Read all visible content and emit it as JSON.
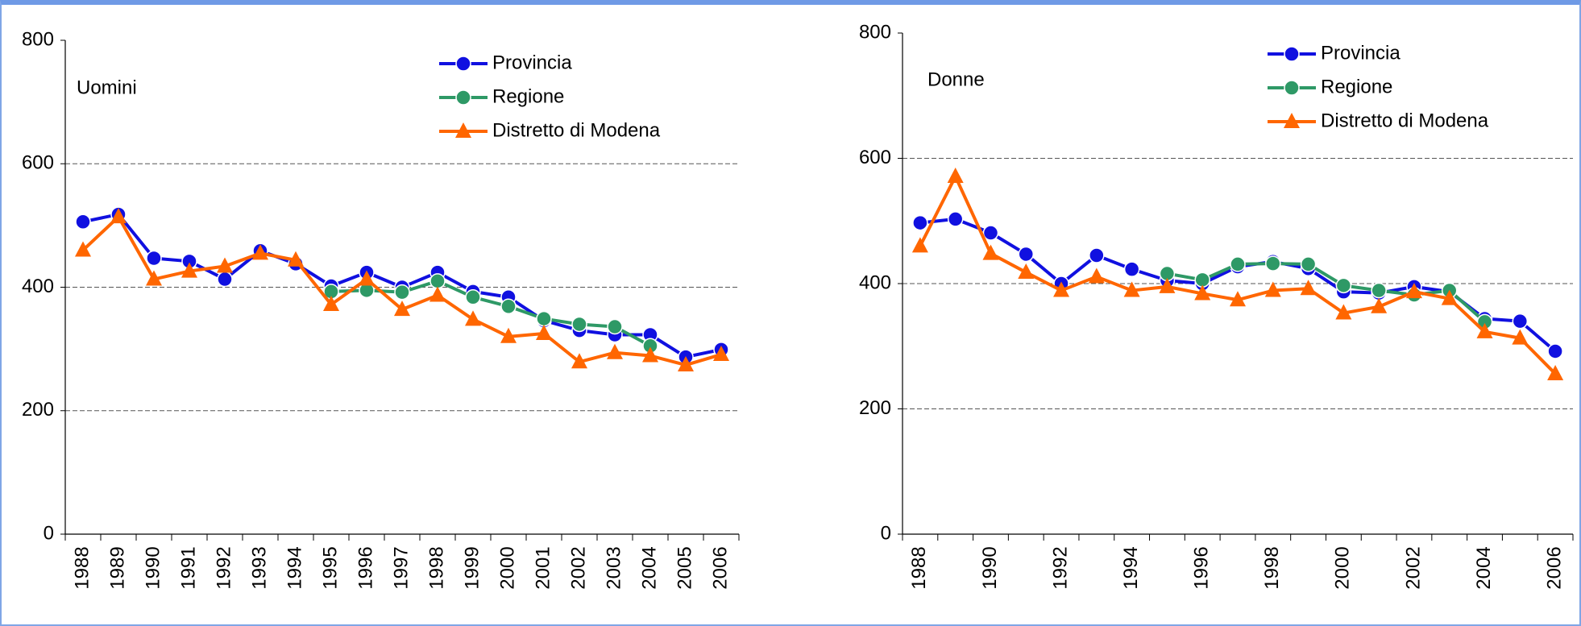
{
  "chart_data": [
    {
      "type": "line",
      "annotation": "Uomini",
      "categories": [
        "1988",
        "1989",
        "1990",
        "1991",
        "1992",
        "1993",
        "1994",
        "1995",
        "1996",
        "1997",
        "1998",
        "1999",
        "2000",
        "2001",
        "2002",
        "2003",
        "2004",
        "2005",
        "2006"
      ],
      "series": [
        {
          "name": "Provincia",
          "color": "#1010e0",
          "marker": "circle",
          "values": [
            506,
            518,
            447,
            442,
            413,
            459,
            438,
            402,
            424,
            400,
            424,
            393,
            384,
            346,
            330,
            323,
            323,
            287,
            299
          ]
        },
        {
          "name": "Regione",
          "color": "#2e9966",
          "marker": "circle",
          "values": [
            null,
            null,
            null,
            null,
            null,
            null,
            null,
            393,
            395,
            392,
            410,
            384,
            369,
            349,
            340,
            336,
            305,
            null,
            null
          ]
        },
        {
          "name": "Distretto di Modena",
          "color": "#ff6600",
          "marker": "triangle",
          "values": [
            460,
            514,
            413,
            426,
            434,
            455,
            444,
            372,
            413,
            364,
            387,
            348,
            320,
            325,
            279,
            294,
            289,
            274,
            291
          ]
        }
      ],
      "ylim": [
        0,
        800
      ],
      "yticks": [
        0,
        200,
        400,
        600,
        800
      ],
      "grid": true,
      "legend": "top-right"
    },
    {
      "type": "line",
      "annotation": "Donne",
      "categories": [
        "1988",
        null,
        "1990",
        null,
        "1992",
        null,
        "1994",
        null,
        "1996",
        null,
        "1998",
        null,
        "2000",
        null,
        "2002",
        null,
        "2004",
        null,
        "2006"
      ],
      "series": [
        {
          "name": "Provincia",
          "color": "#1010e0",
          "marker": "circle",
          "values": [
            497,
            503,
            481,
            447,
            400,
            445,
            423,
            405,
            400,
            427,
            435,
            424,
            387,
            385,
            395,
            387,
            344,
            340,
            292
          ]
        },
        {
          "name": "Regione",
          "color": "#2e9966",
          "marker": "circle",
          "values": [
            null,
            null,
            null,
            null,
            null,
            null,
            null,
            416,
            406,
            431,
            432,
            431,
            397,
            389,
            382,
            389,
            339,
            null,
            null
          ]
        },
        {
          "name": "Distretto di Modena",
          "color": "#ff6600",
          "marker": "triangle",
          "values": [
            460,
            571,
            448,
            418,
            389,
            411,
            389,
            395,
            384,
            374,
            389,
            392,
            353,
            363,
            387,
            376,
            323,
            313,
            256
          ]
        }
      ],
      "ylim": [
        0,
        800
      ],
      "yticks": [
        0,
        200,
        400,
        600,
        800
      ],
      "grid": true,
      "legend": "top-right"
    }
  ]
}
